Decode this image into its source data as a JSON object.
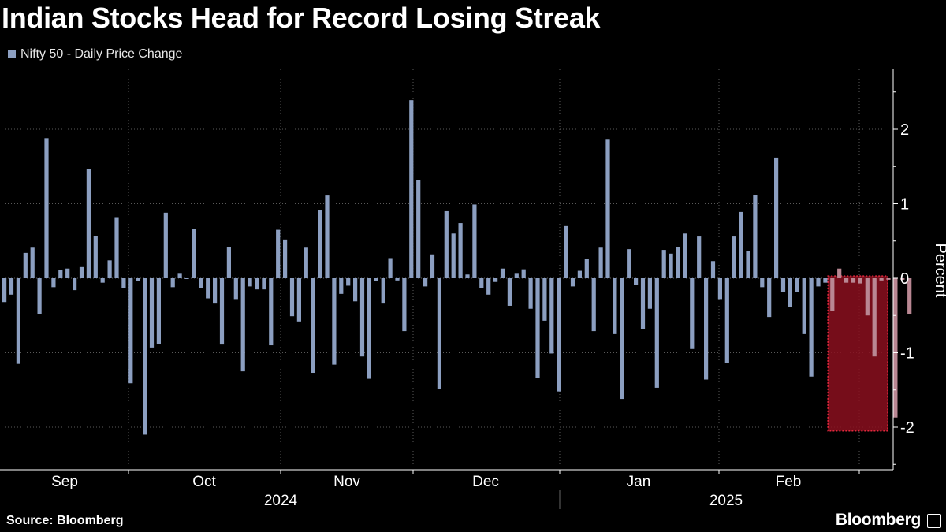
{
  "header": {
    "title": "Indian Stocks Head for Record Losing Streak"
  },
  "legend": {
    "label": "Nifty 50 - Daily Price Change",
    "color": "#8c9fc1"
  },
  "footer": {
    "source": "Source: Bloomberg",
    "brand": "Bloomberg"
  },
  "chart_data": {
    "type": "bar",
    "ylabel": "Percent",
    "ylim": [
      -2.5,
      2.8
    ],
    "yticks": [
      -2,
      -1,
      0,
      1,
      2
    ],
    "grid": true,
    "legend_position": "top-left",
    "highlight_color": "#8b0f1e",
    "x_month_labels": [
      "Sep",
      "Oct",
      "Nov",
      "Dec",
      "Jan",
      "Feb"
    ],
    "x_year_labels": [
      "2024",
      "2025"
    ],
    "series": [
      {
        "name": "Nifty 50 - Daily Price Change",
        "color": "#8c9fc1",
        "values": [
          -0.32,
          -0.22,
          -1.15,
          0.34,
          0.41,
          -0.48,
          1.88,
          -0.12,
          0.11,
          0.13,
          -0.16,
          0.15,
          1.47,
          0.57,
          -0.06,
          0.24,
          0.82,
          -0.13,
          -1.41,
          -0.04,
          -2.1,
          -0.93,
          -0.88,
          0.88,
          -0.12,
          0.06,
          -0.01,
          0.66,
          -0.13,
          -0.27,
          -0.34,
          -0.89,
          0.42,
          -0.29,
          -1.25,
          -0.11,
          -0.15,
          -0.15,
          -0.9,
          0.65,
          0.52,
          -0.51,
          -0.58,
          0.41,
          -1.27,
          0.91,
          1.11,
          -1.16,
          -0.21,
          -0.1,
          -0.31,
          -1.05,
          -1.35,
          -0.04,
          -0.34,
          0.27,
          -0.03,
          -0.71,
          2.39,
          1.32,
          -0.11,
          0.32,
          -1.49,
          0.9,
          0.6,
          0.74,
          0.05,
          0.99,
          -0.13,
          -0.22,
          -0.05,
          0.13,
          -0.37,
          0.06,
          0.12,
          -0.41,
          -1.34,
          -0.57,
          -1.01,
          -1.52,
          0.7,
          -0.11,
          0.1,
          0.26,
          -0.71,
          0.41,
          1.87,
          -0.75,
          -1.62,
          0.39,
          -0.09,
          -0.68,
          -0.41,
          -1.47,
          0.38,
          0.33,
          0.42,
          0.6,
          -0.95,
          0.56,
          -1.36,
          0.23,
          -0.29,
          -1.14,
          0.56,
          0.89,
          0.37,
          1.12,
          -0.12,
          -0.52,
          1.62,
          -0.19,
          -0.39,
          -0.18,
          -0.75,
          -1.32,
          -0.11,
          -0.06,
          -0.44,
          0.13,
          -0.06,
          -0.06,
          -0.07,
          -0.5,
          -1.05,
          -0.03,
          -0.02,
          -1.87,
          -0.02,
          -0.48
        ]
      }
    ]
  }
}
